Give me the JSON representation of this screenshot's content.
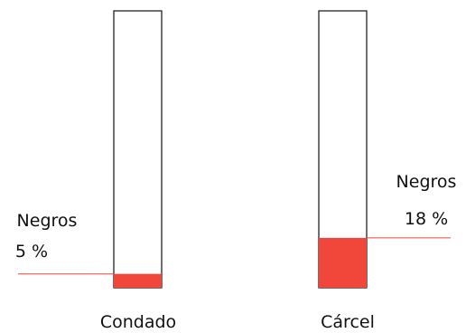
{
  "chart_data": {
    "type": "bar",
    "categories": [
      "Condado",
      "Cárcel"
    ],
    "values": [
      5,
      18
    ],
    "ylim": [
      0,
      100
    ],
    "unit": "%",
    "annotations": [
      {
        "category": "Condado",
        "group": "Negros",
        "value_text": "5 %"
      },
      {
        "category": "Cárcel",
        "group": "Negros",
        "value_text": "18 %"
      }
    ],
    "colors": {
      "fill": "#f0473a",
      "outline": "#111111",
      "leader": "#f0473a"
    }
  }
}
